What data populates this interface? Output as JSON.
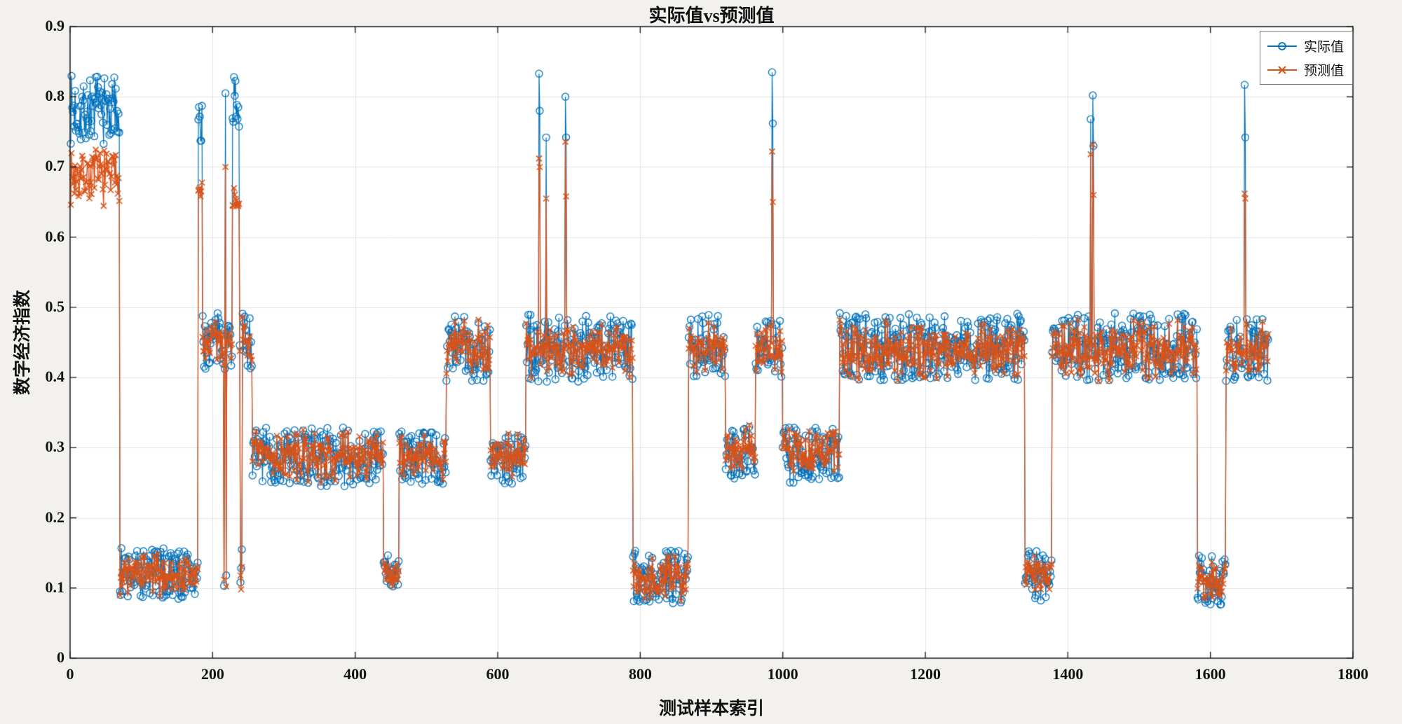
{
  "figure": {
    "background": "#f2f1ee",
    "plot_background": "#ffffff",
    "grid_color": "#e4e4e4",
    "axis_color": "#222222",
    "tick_color": "#111111"
  },
  "chart_data": {
    "type": "line",
    "title": "实际值vs预测值",
    "xlabel": "测试样本索引",
    "ylabel": "数字经济指数",
    "xlim": [
      0,
      1800
    ],
    "ylim": [
      0,
      0.9
    ],
    "xticks": [
      0,
      200,
      400,
      600,
      800,
      1000,
      1200,
      1400,
      1600,
      1800
    ],
    "yticks": [
      0,
      0.1,
      0.2,
      0.3,
      0.4,
      0.5,
      0.6,
      0.7,
      0.8,
      0.9
    ],
    "grid": true,
    "legend_position": "northeast",
    "series": [
      {
        "name": "实际值",
        "color": "#0072BD",
        "marker": "circle"
      },
      {
        "name": "预测值",
        "color": "#D95319",
        "marker": "x"
      }
    ],
    "x_index_range": [
      1,
      1681
    ],
    "representation": "piecewise_noisy_segments",
    "seed": 7,
    "noise_correlation": 0.55,
    "segments": [
      {
        "from": 1,
        "to": 70,
        "actual": 0.782,
        "predicted": 0.688,
        "spread_actual": 0.05,
        "spread_predicted": 0.045
      },
      {
        "from": 70,
        "to": 180,
        "actual": 0.12,
        "predicted": 0.118,
        "spread_actual": 0.038,
        "spread_predicted": 0.036
      },
      {
        "from": 180,
        "to": 186,
        "actual": 0.755,
        "predicted": 0.665,
        "spread_actual": 0.032,
        "spread_predicted": 0.022
      },
      {
        "from": 186,
        "to": 228,
        "actual": 0.452,
        "predicted": 0.45,
        "spread_actual": 0.04,
        "spread_predicted": 0.04
      },
      {
        "from": 228,
        "to": 238,
        "actual": 0.795,
        "predicted": 0.655,
        "spread_actual": 0.038,
        "spread_predicted": 0.018
      },
      {
        "from": 238,
        "to": 256,
        "actual": 0.452,
        "predicted": 0.448,
        "spread_actual": 0.04,
        "spread_predicted": 0.04
      },
      {
        "from": 256,
        "to": 440,
        "actual": 0.287,
        "predicted": 0.288,
        "spread_actual": 0.042,
        "spread_predicted": 0.04
      },
      {
        "from": 440,
        "to": 462,
        "actual": 0.122,
        "predicted": 0.12,
        "spread_actual": 0.027,
        "spread_predicted": 0.025
      },
      {
        "from": 462,
        "to": 528,
        "actual": 0.285,
        "predicted": 0.286,
        "spread_actual": 0.038,
        "spread_predicted": 0.036
      },
      {
        "from": 528,
        "to": 590,
        "actual": 0.442,
        "predicted": 0.446,
        "spread_actual": 0.048,
        "spread_predicted": 0.045
      },
      {
        "from": 590,
        "to": 640,
        "actual": 0.286,
        "predicted": 0.29,
        "spread_actual": 0.038,
        "spread_predicted": 0.036
      },
      {
        "from": 640,
        "to": 790,
        "actual": 0.442,
        "predicted": 0.441,
        "spread_actual": 0.048,
        "spread_predicted": 0.046
      },
      {
        "from": 790,
        "to": 868,
        "actual": 0.116,
        "predicted": 0.115,
        "spread_actual": 0.038,
        "spread_predicted": 0.036
      },
      {
        "from": 868,
        "to": 920,
        "actual": 0.446,
        "predicted": 0.446,
        "spread_actual": 0.045,
        "spread_predicted": 0.043
      },
      {
        "from": 920,
        "to": 962,
        "actual": 0.296,
        "predicted": 0.3,
        "spread_actual": 0.04,
        "spread_predicted": 0.038
      },
      {
        "from": 962,
        "to": 1000,
        "actual": 0.445,
        "predicted": 0.441,
        "spread_actual": 0.045,
        "spread_predicted": 0.043
      },
      {
        "from": 1000,
        "to": 1080,
        "actual": 0.29,
        "predicted": 0.294,
        "spread_actual": 0.04,
        "spread_predicted": 0.038
      },
      {
        "from": 1080,
        "to": 1340,
        "actual": 0.444,
        "predicted": 0.44,
        "spread_actual": 0.048,
        "spread_predicted": 0.046
      },
      {
        "from": 1340,
        "to": 1378,
        "actual": 0.118,
        "predicted": 0.12,
        "spread_actual": 0.036,
        "spread_predicted": 0.034
      },
      {
        "from": 1378,
        "to": 1582,
        "actual": 0.444,
        "predicted": 0.44,
        "spread_actual": 0.048,
        "spread_predicted": 0.046
      },
      {
        "from": 1582,
        "to": 1622,
        "actual": 0.112,
        "predicted": 0.11,
        "spread_actual": 0.036,
        "spread_predicted": 0.034
      },
      {
        "from": 1622,
        "to": 1682,
        "actual": 0.44,
        "predicted": 0.44,
        "spread_actual": 0.045,
        "spread_predicted": 0.043
      }
    ],
    "spikes": [
      {
        "i": 216,
        "actual": 0.103,
        "predicted": 0.112
      },
      {
        "i": 218,
        "actual": 0.805,
        "predicted": 0.7
      },
      {
        "i": 219,
        "actual": 0.118,
        "predicted": 0.102
      },
      {
        "i": 239,
        "actual": 0.108,
        "predicted": 0.118
      },
      {
        "i": 240,
        "actual": 0.128,
        "predicted": 0.098
      },
      {
        "i": 241,
        "actual": 0.155,
        "predicted": 0.13
      },
      {
        "i": 658,
        "actual": 0.833,
        "predicted": 0.712
      },
      {
        "i": 659,
        "actual": 0.78,
        "predicted": 0.7
      },
      {
        "i": 668,
        "actual": 0.742,
        "predicted": 0.655
      },
      {
        "i": 695,
        "actual": 0.8,
        "predicted": 0.736
      },
      {
        "i": 696,
        "actual": 0.742,
        "predicted": 0.658
      },
      {
        "i": 985,
        "actual": 0.835,
        "predicted": 0.722
      },
      {
        "i": 986,
        "actual": 0.762,
        "predicted": 0.65
      },
      {
        "i": 1432,
        "actual": 0.768,
        "predicted": 0.718
      },
      {
        "i": 1435,
        "actual": 0.802,
        "predicted": 0.732
      },
      {
        "i": 1436,
        "actual": 0.73,
        "predicted": 0.66
      },
      {
        "i": 1648,
        "actual": 0.817,
        "predicted": 0.662
      },
      {
        "i": 1649,
        "actual": 0.742,
        "predicted": 0.655
      }
    ]
  }
}
